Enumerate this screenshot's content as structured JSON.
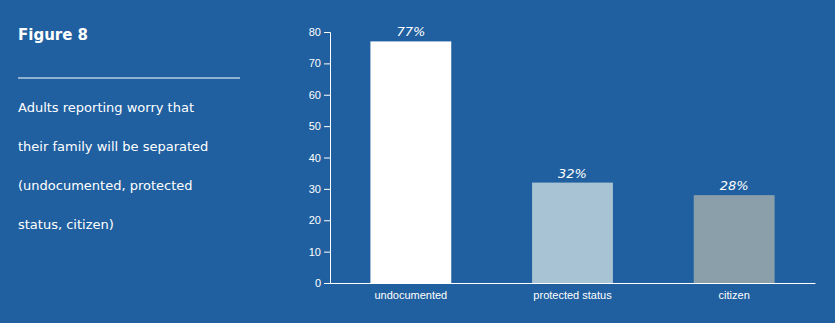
{
  "chart_data": {
    "type": "bar",
    "title": "Figure 8",
    "annotations": [
      "Adults reporting worry that",
      "their family will be separated",
      "(undocumented, protected",
      "status, citizen)"
    ],
    "categories": [
      "undocumented",
      "protected status",
      "citizen"
    ],
    "values": [
      77,
      32,
      28
    ],
    "value_labels": [
      "77%",
      "32%",
      "28%"
    ],
    "data_labels": true,
    "colors": [
      "#ffffff",
      "#a8c4d4",
      "#8a9faa"
    ],
    "ylim": [
      0,
      80
    ],
    "yticks": [
      0,
      10,
      20,
      30,
      40,
      50,
      60,
      70,
      80
    ],
    "grid": false
  }
}
